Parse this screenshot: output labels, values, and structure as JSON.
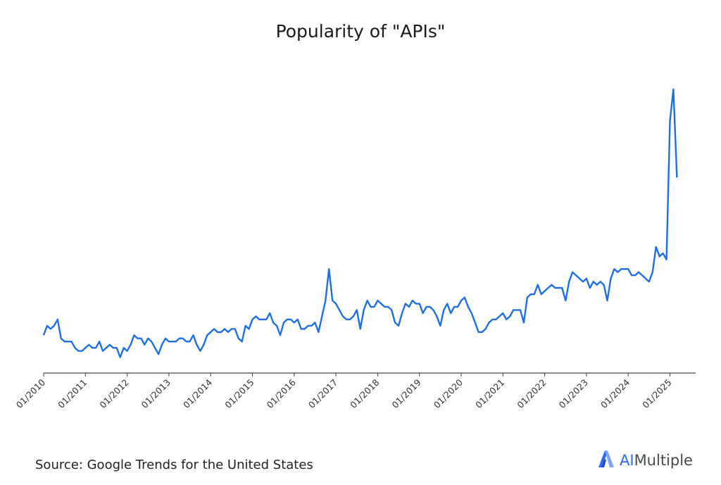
{
  "title": "Popularity of \"APIs\"",
  "source": "Source: Google Trends for the United States",
  "brand": {
    "ai": "AI",
    "rest": "Multiple",
    "logo_icon": "aimultiple-logo-icon"
  },
  "colors": {
    "line": "#1f6fe0",
    "axis": "#444444",
    "brand_accent": "#2c6cf0"
  },
  "chart_data": {
    "type": "line",
    "title": "Popularity of \"APIs\"",
    "xlabel": "",
    "ylabel": "",
    "x_ticks": [
      "01/2010",
      "01/2011",
      "01/2012",
      "01/2013",
      "01/2014",
      "01/2015",
      "01/2016",
      "01/2017",
      "01/2018",
      "01/2019",
      "01/2020",
      "01/2021",
      "01/2022",
      "01/2023",
      "01/2024",
      "01/2025"
    ],
    "x_start": "01/2010",
    "x_end": "08/2025",
    "ylim": [
      0,
      100
    ],
    "grid": false,
    "legend": "none",
    "series": [
      {
        "values": [
          12,
          15,
          14,
          15,
          17,
          11,
          10,
          10,
          10,
          8,
          7,
          7,
          8,
          9,
          8,
          8,
          10,
          7,
          8,
          9,
          8,
          8,
          5,
          8,
          7,
          9,
          12,
          11,
          11,
          9,
          11,
          10,
          8,
          6,
          9,
          11,
          10,
          10,
          10,
          11,
          11,
          10,
          10,
          12,
          9,
          7,
          9,
          12,
          13,
          14,
          13,
          13,
          14,
          13,
          14,
          14,
          11,
          10,
          15,
          14,
          17,
          18,
          17,
          17,
          17,
          19,
          16,
          15,
          12,
          16,
          17,
          17,
          16,
          17,
          14,
          14,
          15,
          15,
          16,
          13,
          18,
          23,
          33,
          23,
          22,
          20,
          18,
          17,
          17,
          18,
          20,
          14,
          20,
          23,
          21,
          21,
          23,
          22,
          21,
          21,
          20,
          16,
          15,
          19,
          22,
          21,
          23,
          22,
          22,
          19,
          21,
          21,
          20,
          18,
          15,
          20,
          22,
          19,
          21,
          21,
          23,
          24,
          21,
          19,
          16,
          13,
          13,
          14,
          16,
          17,
          17,
          18,
          19,
          17,
          18,
          20,
          20,
          20,
          16,
          24,
          25,
          25,
          28,
          25,
          26,
          27,
          28,
          27,
          27,
          27,
          23,
          29,
          32,
          31,
          30,
          29,
          30,
          27,
          29,
          28,
          29,
          28,
          23,
          30,
          33,
          32,
          33,
          33,
          33,
          31,
          31,
          32,
          31,
          30,
          29,
          32,
          40,
          37,
          38,
          36,
          80,
          90,
          62
        ]
      }
    ]
  }
}
